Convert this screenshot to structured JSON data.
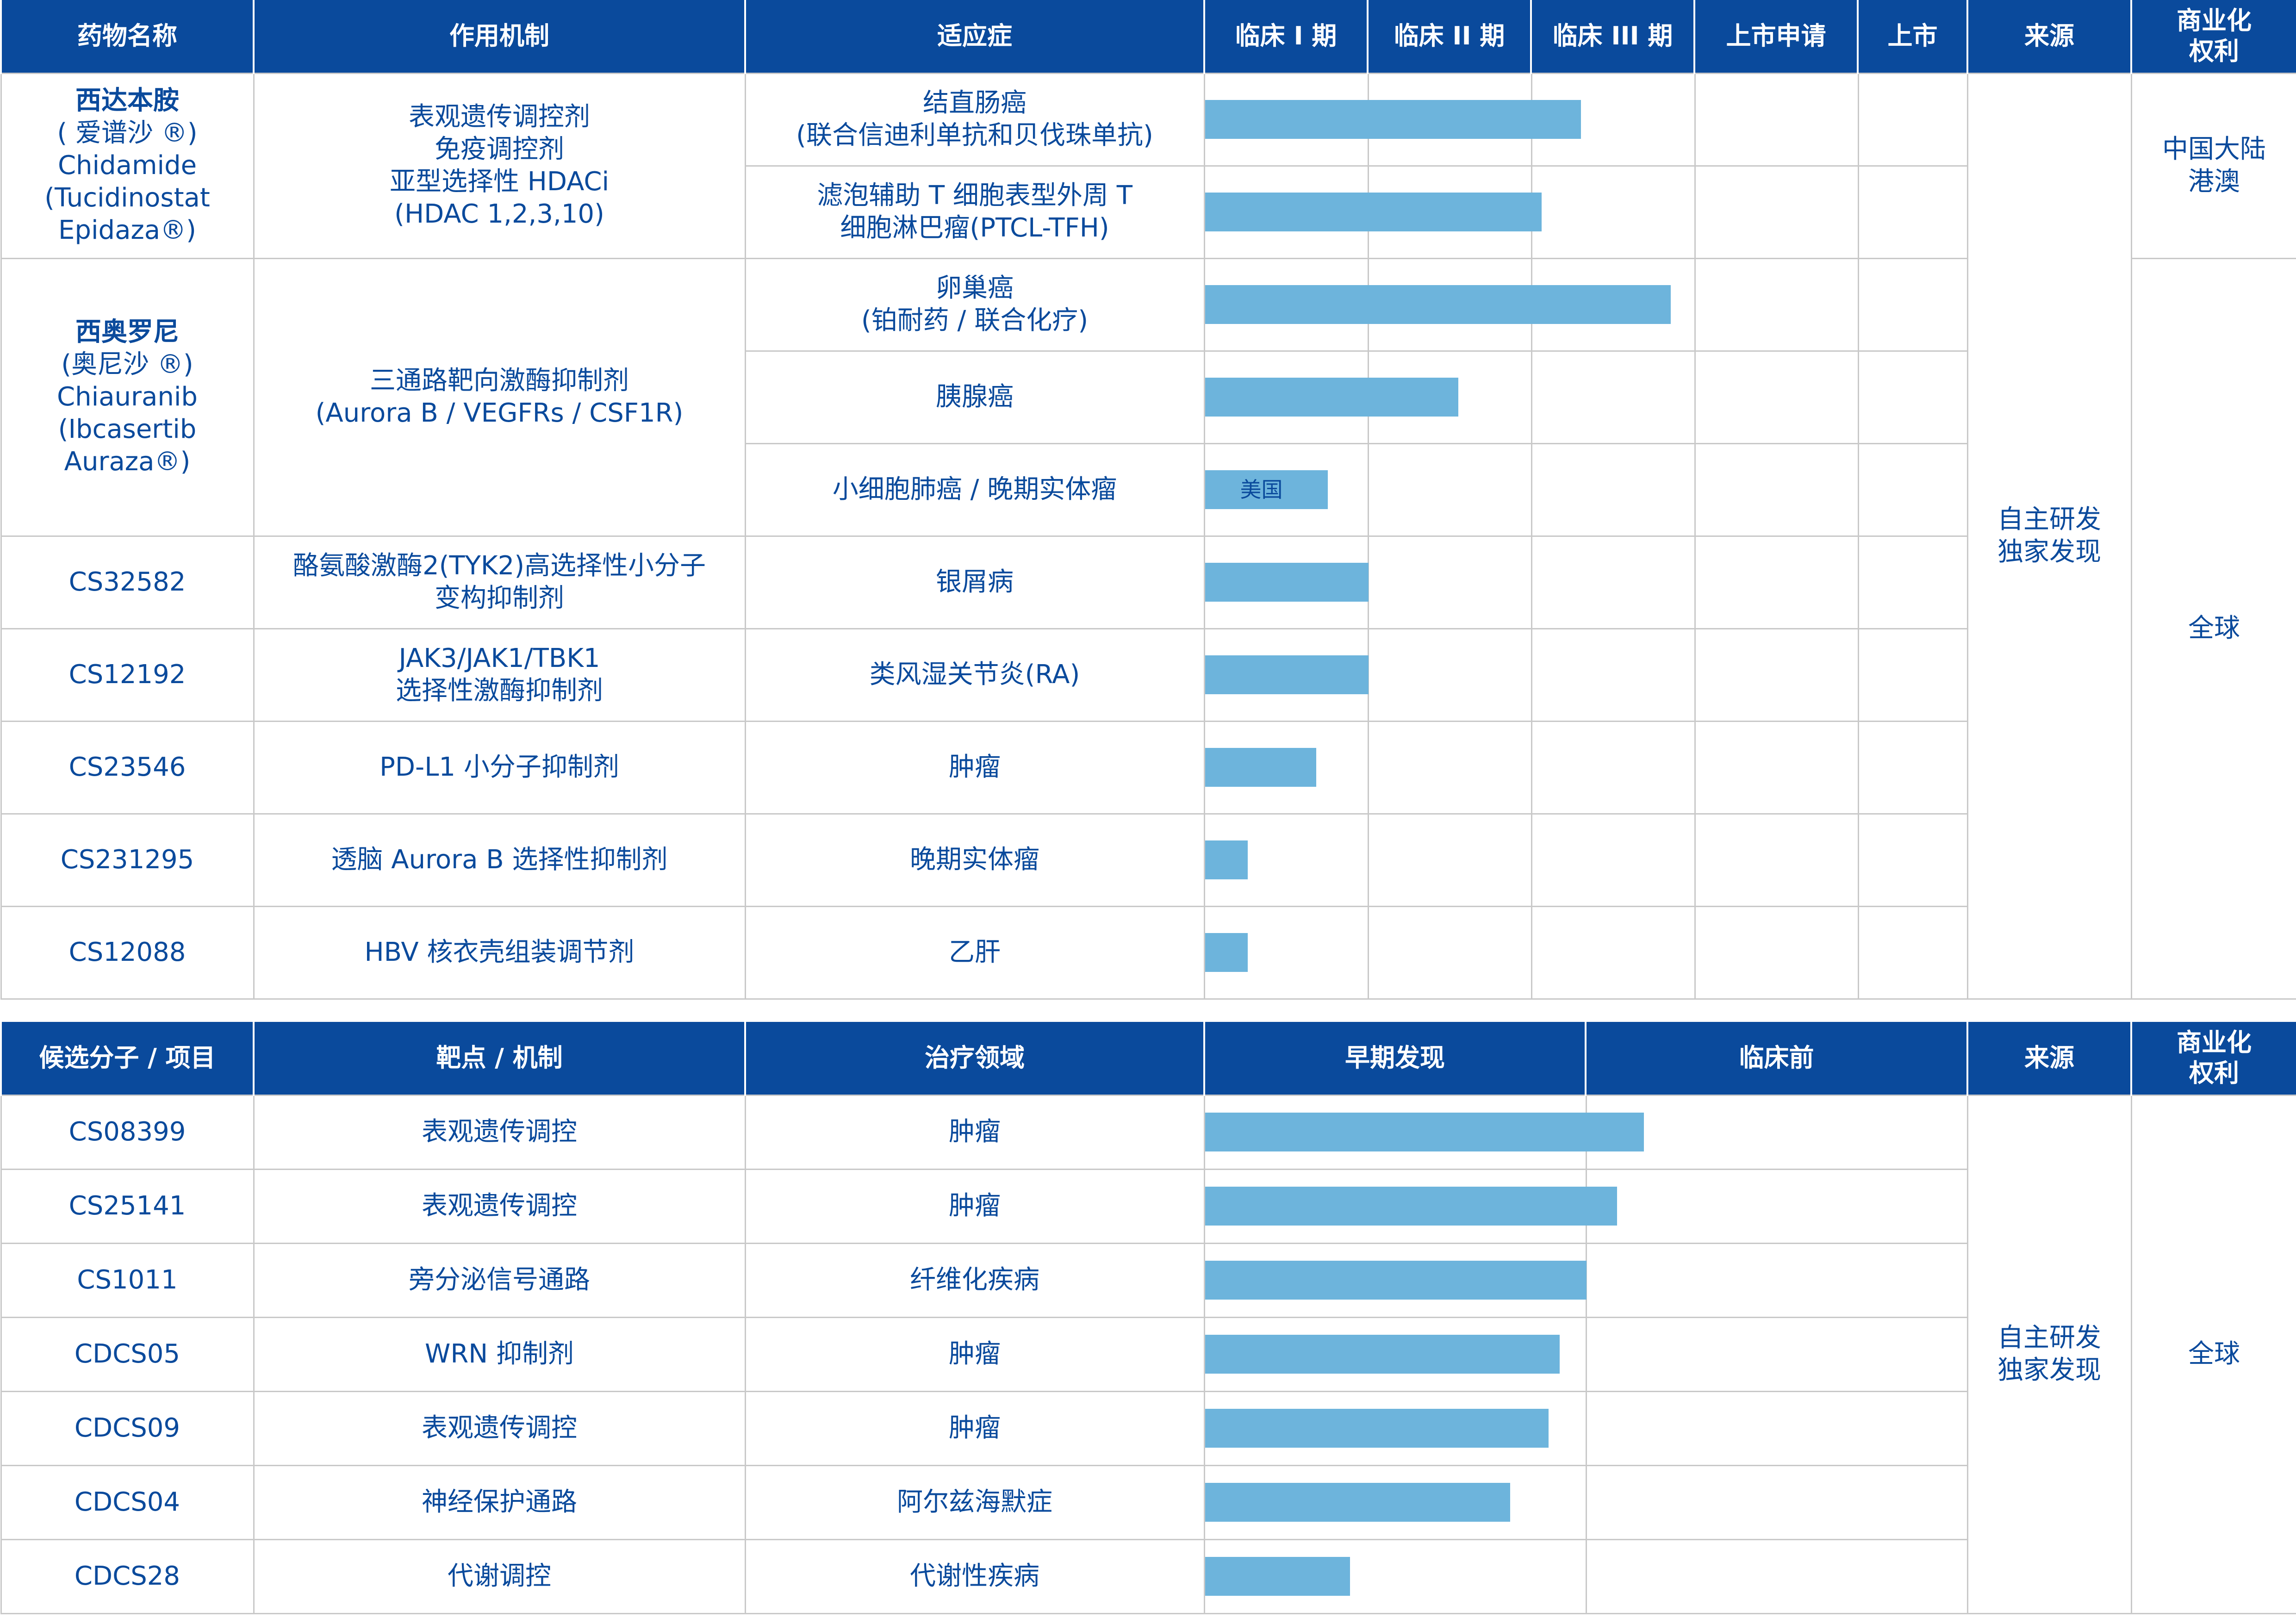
{
  "chart_data": {
    "type": "table",
    "clinical": {
      "headers": {
        "drug": "药物名称",
        "mechanism": "作用机制",
        "indication": "适应症",
        "stages": [
          "临床 I 期",
          "临床 II 期",
          "临床 III 期",
          "上市申请",
          "上市"
        ],
        "source": "来源",
        "rights": "商业化\n权利"
      },
      "drugs": [
        {
          "name_cn": "西达本胺",
          "name_rest": "( 爱谱沙 ®)\nChidamide\n(Tucidinostat\nEpidaza®)",
          "mechanism": "表观遗传调控剂\n免疫调控剂\n亚型选择性 HDACi\n(HDAC 1,2,3,10)",
          "rights": "中国大陆\n港澳",
          "indications": [
            {
              "label": "结直肠癌\n(联合信迪利单抗和贝伐珠单抗)",
              "progress": 2.3
            },
            {
              "label": "滤泡辅助 T 细胞表型外周 T\n细胞淋巴瘤(PTCL-TFH)",
              "progress": 2.06
            }
          ]
        },
        {
          "name_cn": "西奥罗尼",
          "name_rest": "(奥尼沙 ®)\nChiauranib\n(Ibcasertib\nAuraza®)",
          "mechanism": "三通路靶向激酶抑制剂\n(Aurora B / VEGFRs / CSF1R)",
          "rights": "全球",
          "indications": [
            {
              "label": "卵巢癌\n(铂耐药 / 联合化疗)",
              "progress": 2.85
            },
            {
              "label": "胰腺癌",
              "progress": 1.55
            },
            {
              "label": "小细胞肺癌 / 晚期实体瘤",
              "progress": 0.75,
              "note": "美国"
            }
          ]
        },
        {
          "name_cn": "",
          "name_rest": "CS32582",
          "mechanism": "酪氨酸激酶2(TYK2)高选择性小分子\n变构抑制剂",
          "indications": [
            {
              "label": "银屑病",
              "progress": 1.0
            }
          ]
        },
        {
          "name_cn": "",
          "name_rest": "CS12192",
          "mechanism": "JAK3/JAK1/TBK1\n选择性激酶抑制剂",
          "indications": [
            {
              "label": "类风湿关节炎(RA)",
              "progress": 1.0
            }
          ]
        },
        {
          "name_cn": "",
          "name_rest": "CS23546",
          "mechanism": "PD-L1 小分子抑制剂",
          "indications": [
            {
              "label": "肿瘤",
              "progress": 0.68
            }
          ]
        },
        {
          "name_cn": "",
          "name_rest": "CS231295",
          "mechanism": "透脑 Aurora B 选择性抑制剂",
          "indications": [
            {
              "label": "晚期实体瘤",
              "progress": 0.26
            }
          ]
        },
        {
          "name_cn": "",
          "name_rest": "CS12088",
          "mechanism": "HBV 核衣壳组装调节剂",
          "indications": [
            {
              "label": "乙肝",
              "progress": 0.26
            }
          ]
        }
      ],
      "source": "自主研发\n独家发现"
    },
    "preclinical": {
      "headers": {
        "candidate": "候选分子 / 项目",
        "target": "靶点 / 机制",
        "area": "治疗领域",
        "stages": [
          "早期发现",
          "临床前"
        ],
        "source": "来源",
        "rights": "商业化\n权利"
      },
      "rows": [
        {
          "name": "CS08399",
          "target": "表观遗传调控",
          "area": "肿瘤",
          "progress": 1.15
        },
        {
          "name": "CS25141",
          "target": "表观遗传调控",
          "area": "肿瘤",
          "progress": 1.08
        },
        {
          "name": "CS1011",
          "target": "旁分泌信号通路",
          "area": "纤维化疾病",
          "progress": 1.0
        },
        {
          "name": "CDCS05",
          "target": "WRN 抑制剂",
          "area": "肿瘤",
          "progress": 0.93
        },
        {
          "name": "CDCS09",
          "target": "表观遗传调控",
          "area": "肿瘤",
          "progress": 0.9
        },
        {
          "name": "CDCS04",
          "target": "神经保护通路",
          "area": "阿尔兹海默症",
          "progress": 0.8
        },
        {
          "name": "CDCS28",
          "target": "代谢调控",
          "area": "代谢性疾病",
          "progress": 0.38
        }
      ],
      "source": "自主研发\n独家发现",
      "rights": "全球"
    }
  }
}
